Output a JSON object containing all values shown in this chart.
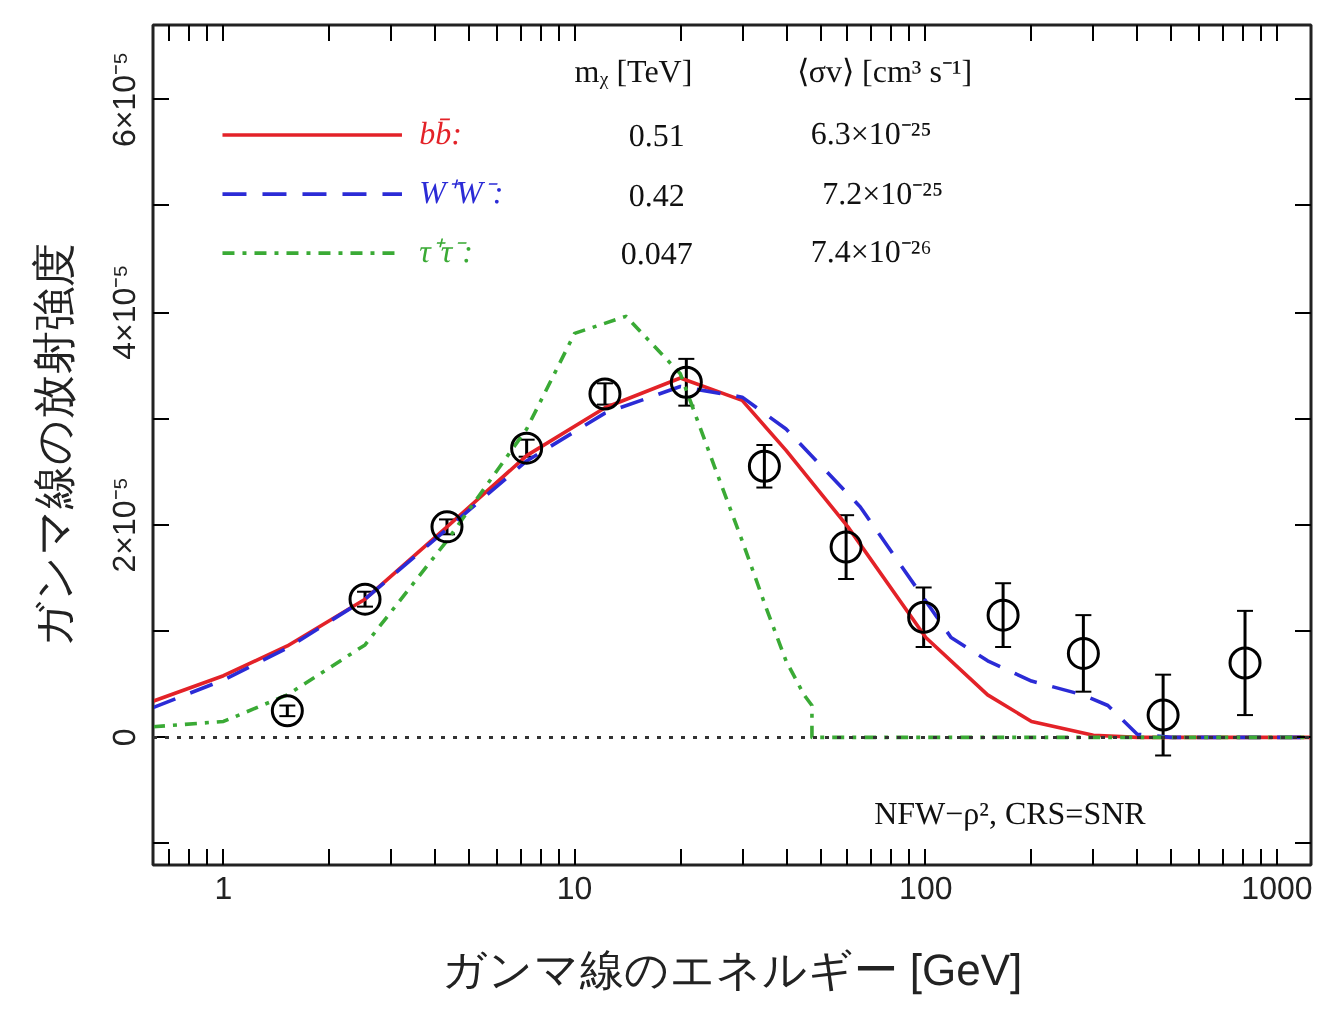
{
  "chart_data": {
    "type": "line",
    "xlabel": "ガンマ線のエネルギー [GeV]",
    "ylabel": "ガンマ線の放射強度",
    "log": "x",
    "xlim": [
      0.63,
      1250
    ],
    "ylim": [
      -1.2e-05,
      6.7e-05
    ],
    "xticks": [
      {
        "value": 0.7,
        "label": null
      },
      {
        "value": 0.8,
        "label": null
      },
      {
        "value": 0.9,
        "label": null
      },
      1,
      {
        "value": 2,
        "label": null
      },
      {
        "value": 3,
        "label": null
      },
      {
        "value": 4,
        "label": null
      },
      {
        "value": 5,
        "label": null
      },
      {
        "value": 6,
        "label": null
      },
      {
        "value": 7,
        "label": null
      },
      {
        "value": 8,
        "label": null
      },
      {
        "value": 9,
        "label": null
      },
      10,
      {
        "value": 20,
        "label": null
      },
      {
        "value": 30,
        "label": null
      },
      {
        "value": 40,
        "label": null
      },
      {
        "value": 50,
        "label": null
      },
      {
        "value": 60,
        "label": null
      },
      {
        "value": 70,
        "label": null
      },
      {
        "value": 80,
        "label": null
      },
      {
        "value": 90,
        "label": null
      },
      100,
      {
        "value": 200,
        "label": null
      },
      {
        "value": 300,
        "label": null
      },
      {
        "value": 400,
        "label": null
      },
      {
        "value": 500,
        "label": null
      },
      {
        "value": 600,
        "label": null
      },
      {
        "value": 700,
        "label": null
      },
      {
        "value": 800,
        "label": null
      },
      {
        "value": 900,
        "label": null
      },
      1000
    ],
    "yticks": [
      {
        "value": -1e-05,
        "label": null
      },
      0,
      {
        "value": 1e-05,
        "label": null
      },
      {
        "value": 2e-05,
        "label": "2×10⁻⁵"
      },
      {
        "value": 3e-05,
        "label": null
      },
      {
        "value": 4e-05,
        "label": "4×10⁻⁵"
      },
      {
        "value": 5e-05,
        "label": null
      },
      {
        "value": 6e-05,
        "label": "6×10⁻⁵"
      }
    ],
    "grid": false,
    "legend": "top left",
    "ref_lines": [
      {
        "axis": "y",
        "value": 0,
        "color": "#333333",
        "line_style": "dotted"
      }
    ],
    "annotations": [
      "mᵪ [TeV]",
      "⟨σv⟩ [cm³ s⁻¹]",
      "0.51",
      "6.3×10⁻²⁵",
      "0.42",
      "7.2×10⁻²⁵",
      "0.047",
      "7.4×10⁻²⁶",
      "NFW−ρ², CRS=SNR"
    ],
    "series": [
      {
        "name": "bb̄:",
        "type": "line",
        "color": "#e32228",
        "line_style": "solid",
        "x": [
          0.63,
          1,
          1.52,
          2.53,
          4.33,
          7.3,
          12.2,
          20,
          30,
          40,
          60,
          100,
          150,
          200,
          300,
          400,
          1250
        ],
        "values": [
          3.4e-06,
          5.8e-06,
          8.6e-06,
          1.3e-05,
          1.98e-05,
          2.65e-05,
          3.1e-05,
          3.38e-05,
          3.17e-05,
          2.7e-05,
          1.98e-05,
          9.4e-06,
          4e-06,
          1.5e-06,
          2e-07,
          0,
          0
        ]
      },
      {
        "name": "W⁺W⁻:",
        "type": "line",
        "color": "#2b2bd6",
        "line_style": "dashed",
        "x": [
          0.63,
          1,
          1.52,
          2.53,
          4.33,
          7.3,
          12.2,
          20,
          30,
          40,
          65,
          118,
          150,
          200,
          280,
          330,
          400,
          500,
          1250
        ],
        "values": [
          2.8e-06,
          5.4e-06,
          8.4e-06,
          1.3e-05,
          1.96e-05,
          2.6e-05,
          3.05e-05,
          3.3e-05,
          3.2e-05,
          2.9e-05,
          2.17e-05,
          9.4e-06,
          7.2e-06,
          5.3e-06,
          4e-06,
          3e-06,
          3e-07,
          0,
          0
        ]
      },
      {
        "name": "τ⁺τ⁻:",
        "type": "line",
        "color": "#3aaa35",
        "line_style": "dashdot",
        "x": [
          0.63,
          1,
          1.52,
          2.53,
          4.33,
          7.3,
          10,
          14,
          20,
          25,
          30,
          35,
          40,
          45,
          47.4,
          47.4,
          1250
        ],
        "values": [
          1e-06,
          1.5e-06,
          4e-06,
          8.7e-06,
          1.85e-05,
          2.9e-05,
          3.8e-05,
          3.96e-05,
          3.42e-05,
          2.55e-05,
          1.85e-05,
          1.23e-05,
          7.2e-06,
          4e-06,
          3e-06,
          0,
          0
        ]
      },
      {
        "type": "scatter",
        "color": "#000000",
        "marker": "circle",
        "x": [
          1.52,
          2.53,
          4.33,
          7.3,
          12.2,
          20.8,
          34.7,
          59.3,
          98.6,
          166,
          281,
          474,
          811
        ],
        "values": [
          2.5e-06,
          1.3e-05,
          1.98e-05,
          2.72e-05,
          3.23e-05,
          3.34e-05,
          2.55e-05,
          1.79e-05,
          1.13e-05,
          1.15e-05,
          7.9e-06,
          2.1e-06,
          7e-06
        ],
        "errors": [
          5e-07,
          7e-07,
          7e-07,
          8e-07,
          1e-06,
          2.2e-06,
          2e-06,
          3e-06,
          2.8e-06,
          3e-06,
          3.6e-06,
          3.8e-06,
          4.9e-06
        ]
      }
    ]
  }
}
